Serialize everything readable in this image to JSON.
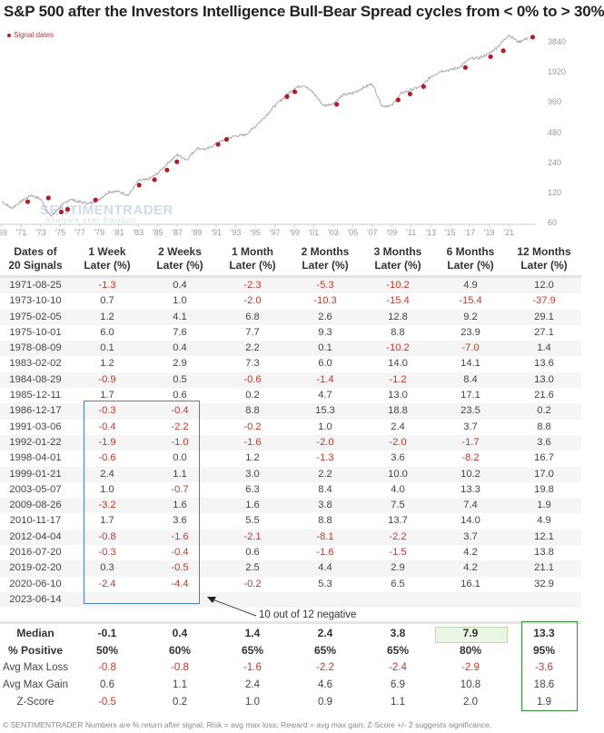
{
  "title": "S&P 500 after the Investors Intelligence Bull-Bear Spread cycles from < 0% to > 30%",
  "legend": {
    "label": "Signal dates",
    "color": "#b01e23"
  },
  "watermark": {
    "brand": "SENTIMENTRADER",
    "tagline": "Analysis over Emotion"
  },
  "chart_data": {
    "type": "line",
    "title": "S&P 500 after the Investors Intelligence Bull-Bear Spread cycles from < 0% to > 30%",
    "xlabel": "",
    "ylabel": "",
    "y_scale": "log",
    "y_ticks": [
      60,
      120,
      240,
      480,
      960,
      1920,
      3840
    ],
    "x_ticks": [
      "'69",
      "'71",
      "'73",
      "'75",
      "'77",
      "'79",
      "'81",
      "'83",
      "'85",
      "'87",
      "'89",
      "'91",
      "'93",
      "'95",
      "'97",
      "'99",
      "'01",
      "'03",
      "'05",
      "'07",
      "'09",
      "'11",
      "'13",
      "'15",
      "'17",
      "'19",
      "'21"
    ],
    "ylim": [
      60,
      4800
    ],
    "grid": false,
    "legend_position": "top-left",
    "series": [
      {
        "name": "S&P 500",
        "color": "#a8a8a8",
        "x": [
          1969,
          1970,
          1971,
          1972,
          1973,
          1974,
          1975,
          1976,
          1977,
          1978,
          1979,
          1980,
          1981,
          1982,
          1983,
          1984,
          1985,
          1986,
          1987,
          1988,
          1989,
          1990,
          1991,
          1992,
          1993,
          1994,
          1995,
          1996,
          1997,
          1998,
          1999,
          2000,
          2001,
          2002,
          2003,
          2004,
          2005,
          2006,
          2007,
          2008,
          2009,
          2010,
          2011,
          2012,
          2013,
          2014,
          2015,
          2016,
          2017,
          2018,
          2019,
          2020,
          2021,
          2022,
          2023
        ],
        "values": [
          100,
          85,
          100,
          115,
          105,
          70,
          88,
          105,
          98,
          95,
          105,
          125,
          125,
          115,
          160,
          165,
          190,
          240,
          290,
          260,
          340,
          330,
          375,
          420,
          450,
          460,
          560,
          700,
          900,
          1100,
          1350,
          1450,
          1200,
          900,
          950,
          1150,
          1200,
          1350,
          1500,
          900,
          900,
          1200,
          1300,
          1400,
          1750,
          2000,
          2050,
          2200,
          2650,
          2700,
          3000,
          3600,
          4600,
          3900,
          4300
        ]
      },
      {
        "name": "Signal dates",
        "type": "scatter",
        "color": "#b01e23",
        "x": [
          "1971-08-25",
          "1973-10-10",
          "1975-02-05",
          "1975-10-01",
          "1978-08-09",
          "1983-02-02",
          "1984-08-29",
          "1985-12-11",
          "1986-12-17",
          "1991-03-06",
          "1992-01-22",
          "1998-04-01",
          "1999-01-21",
          "2003-05-07",
          "2009-08-26",
          "2010-11-17",
          "2012-04-04",
          "2016-07-20",
          "2019-02-20",
          "2020-06-10",
          "2023-06-14"
        ],
        "values": [
          99,
          108,
          78,
          83,
          103,
          145,
          164,
          205,
          248,
          370,
          415,
          1110,
          1240,
          930,
          1030,
          1180,
          1400,
          2170,
          2780,
          3190,
          4370
        ]
      }
    ]
  },
  "table": {
    "headers": [
      [
        "Dates of",
        "20 Signals"
      ],
      [
        "1 Week",
        "Later (%)"
      ],
      [
        "2 Weeks",
        "Later (%)"
      ],
      [
        "1 Month",
        "Later (%)"
      ],
      [
        "2 Months",
        "Later (%)"
      ],
      [
        "3 Months",
        "Later (%)"
      ],
      [
        "6 Months",
        "Later (%)"
      ],
      [
        "12 Months",
        "Later (%)"
      ]
    ],
    "rows": [
      [
        "1971-08-25",
        "-1.3",
        "0.4",
        "-2.3",
        "-5.3",
        "-10.2",
        "4.9",
        "12.0"
      ],
      [
        "1973-10-10",
        "0.7",
        "1.0",
        "-2.0",
        "-10.3",
        "-15.4",
        "-15.4",
        "-37.9"
      ],
      [
        "1975-02-05",
        "1.2",
        "4.1",
        "6.8",
        "2.6",
        "12.8",
        "9.2",
        "29.1"
      ],
      [
        "1975-10-01",
        "6.0",
        "7.6",
        "7.7",
        "9.3",
        "8.8",
        "23.9",
        "27.1"
      ],
      [
        "1978-08-09",
        "0.1",
        "0.4",
        "2.2",
        "0.1",
        "-10.2",
        "-7.0",
        "1.4"
      ],
      [
        "1983-02-02",
        "1.2",
        "2.9",
        "7.3",
        "6.0",
        "14.0",
        "14.1",
        "13.6"
      ],
      [
        "1984-08-29",
        "-0.9",
        "0.5",
        "-0.6",
        "-1.4",
        "-1.2",
        "8.4",
        "13.0"
      ],
      [
        "1985-12-11",
        "1.7",
        "0.6",
        "0.2",
        "4.7",
        "13.0",
        "17.1",
        "21.6"
      ],
      [
        "1986-12-17",
        "-0.3",
        "-0.4",
        "8.8",
        "15.3",
        "18.8",
        "23.5",
        "0.2"
      ],
      [
        "1991-03-06",
        "-0.4",
        "-2.2",
        "-0.2",
        "1.0",
        "2.4",
        "3.7",
        "8.8"
      ],
      [
        "1992-01-22",
        "-1.9",
        "-1.0",
        "-1.6",
        "-2.0",
        "-2.0",
        "-1.7",
        "3.6"
      ],
      [
        "1998-04-01",
        "-0.6",
        "0.0",
        "1.2",
        "-1.3",
        "3.6",
        "-8.2",
        "16.7"
      ],
      [
        "1999-01-21",
        "2.4",
        "1.1",
        "3.0",
        "2.2",
        "10.0",
        "10.2",
        "17.0"
      ],
      [
        "2003-05-07",
        "1.0",
        "-0.7",
        "6.3",
        "8.4",
        "4.0",
        "13.3",
        "19.8"
      ],
      [
        "2009-08-26",
        "-3.2",
        "1.6",
        "1.6",
        "3.8",
        "7.5",
        "7.4",
        "1.9"
      ],
      [
        "2010-11-17",
        "1.7",
        "3.6",
        "5.5",
        "8.8",
        "13.7",
        "14.0",
        "4.9"
      ],
      [
        "2012-04-04",
        "-0.8",
        "-1.6",
        "-2.1",
        "-8.1",
        "-2.2",
        "3.7",
        "12.1"
      ],
      [
        "2016-07-20",
        "-0.3",
        "-0.4",
        "0.6",
        "-1.6",
        "-1.5",
        "4.2",
        "13.8"
      ],
      [
        "2019-02-20",
        "0.3",
        "-0.5",
        "2.5",
        "4.4",
        "2.9",
        "4.2",
        "21.1"
      ],
      [
        "2020-06-10",
        "-2.4",
        "-4.4",
        "-0.2",
        "5.3",
        "6.5",
        "16.1",
        "32.9"
      ],
      [
        "2023-06-14",
        "",
        "",
        "",
        "",
        "",
        "",
        ""
      ]
    ],
    "summary": [
      [
        "Median",
        "-0.1",
        "0.4",
        "1.4",
        "2.4",
        "3.8",
        "7.9",
        "13.3"
      ],
      [
        "% Positive",
        "50%",
        "60%",
        "65%",
        "65%",
        "65%",
        "80%",
        "95%"
      ],
      [
        "Avg Max Loss",
        "-0.8",
        "-0.8",
        "-1.6",
        "-2.2",
        "-2.4",
        "-2.9",
        "-3.6"
      ],
      [
        "Avg Max Gain",
        "0.6",
        "1.1",
        "2.4",
        "4.6",
        "6.9",
        "10.8",
        "18.6"
      ],
      [
        "Z-Score",
        "-0.5",
        "0.2",
        "1.0",
        "0.9",
        "1.1",
        "2.0",
        "1.9"
      ]
    ]
  },
  "annotation": {
    "text": "10 out of 12 negative",
    "box_color": "#4a7abf"
  },
  "highlight": {
    "green_box_color": "#3a8a3a",
    "green_fill_color": "#eaf5e3"
  },
  "colors": {
    "negative": "#c0392b",
    "line": "#a8a8a8",
    "signal": "#b01e23"
  },
  "footer": "© SENTIMENTRADER  Numbers are % return after signal; Risk = avg max loss; Reward = avg max gain; Z-Score +/- 2 suggests significance."
}
